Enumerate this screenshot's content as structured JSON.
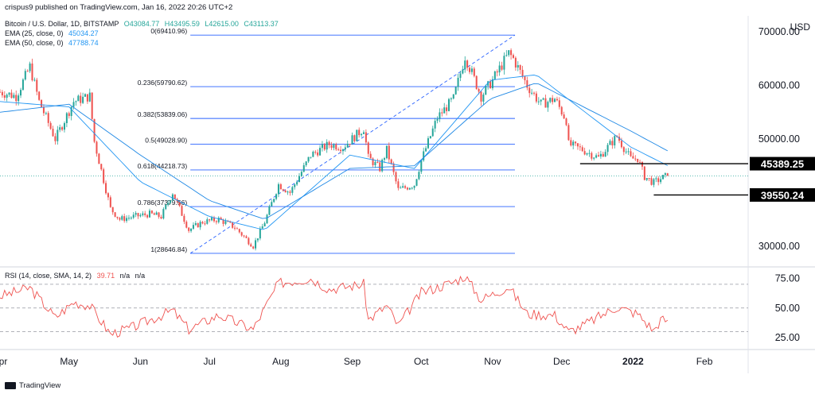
{
  "header": {
    "published_line": "crispus9 published on TradingView.com, Jan 16, 2022 20:26 UTC+2"
  },
  "legend": {
    "symbol_line": "Bitcoin / U.S. Dollar, 1D, BITSTAMP",
    "ohlc": {
      "o": "O43084.77",
      "h": "H43495.59",
      "l": "L42615.00",
      "c": "C43113.37"
    },
    "ema25_label": "EMA (25, close, 0)",
    "ema25_value": "45034.27",
    "ema50_label": "EMA (50, close, 0)",
    "ema50_value": "47788.74"
  },
  "price_axis": {
    "currency": "USD",
    "ticks": [
      "70000.00",
      "60000.00",
      "50000.00",
      "30000.00"
    ],
    "badges": [
      "45389.25",
      "39550.24"
    ]
  },
  "rsi_panel": {
    "label": "RSI (14, close, SMA, 14, 2)",
    "value": "39.71",
    "na1": "n/a",
    "na2": "n/a",
    "ticks": [
      "75.00",
      "50.00",
      "25.00"
    ]
  },
  "time_axis": {
    "labels": [
      "Apr",
      "May",
      "Jun",
      "Jul",
      "Aug",
      "Sep",
      "Oct",
      "Nov",
      "Dec",
      "2022",
      "Feb"
    ]
  },
  "footer": {
    "brand": "TradingView"
  },
  "colors": {
    "up": "#26a69a",
    "down": "#ef5350",
    "ema25": "#2196f3",
    "ema50": "#1e88e5",
    "fib": "#2962ff",
    "rsi": "#ef5350",
    "support_resistance": "#000000"
  },
  "chart_data": {
    "type": "candlestick",
    "timeframe": "1D",
    "symbol": "Bitcoin / U.S. Dollar",
    "ylim": [
      27000,
      73000
    ],
    "x_range": [
      "2021-04-01",
      "2022-02-20"
    ],
    "price_path": [
      [
        "2021-04-01",
        58800
      ],
      [
        "2021-04-08",
        58000
      ],
      [
        "2021-04-14",
        63500
      ],
      [
        "2021-04-18",
        57000
      ],
      [
        "2021-04-25",
        50000
      ],
      [
        "2021-05-03",
        57000
      ],
      [
        "2021-05-10",
        58000
      ],
      [
        "2021-05-12",
        49500
      ],
      [
        "2021-05-19",
        37000
      ],
      [
        "2021-05-23",
        35000
      ],
      [
        "2021-05-29",
        35500
      ],
      [
        "2021-06-05",
        36000
      ],
      [
        "2021-06-10",
        35500
      ],
      [
        "2021-06-15",
        40000
      ],
      [
        "2021-06-22",
        33000
      ],
      [
        "2021-06-28",
        34500
      ],
      [
        "2021-07-05",
        35000
      ],
      [
        "2021-07-12",
        33500
      ],
      [
        "2021-07-20",
        30000
      ],
      [
        "2021-07-25",
        34500
      ],
      [
        "2021-07-31",
        41500
      ],
      [
        "2021-08-05",
        40000
      ],
      [
        "2021-08-14",
        47000
      ],
      [
        "2021-08-22",
        49000
      ],
      [
        "2021-08-28",
        48500
      ],
      [
        "2021-09-06",
        52000
      ],
      [
        "2021-09-08",
        46500
      ],
      [
        "2021-09-13",
        44500
      ],
      [
        "2021-09-16",
        48000
      ],
      [
        "2021-09-21",
        40500
      ],
      [
        "2021-09-28",
        41500
      ],
      [
        "2021-10-01",
        46000
      ],
      [
        "2021-10-08",
        54000
      ],
      [
        "2021-10-15",
        57500
      ],
      [
        "2021-10-20",
        65500
      ],
      [
        "2021-10-27",
        58000
      ],
      [
        "2021-11-01",
        61000
      ],
      [
        "2021-11-08",
        66000
      ],
      [
        "2021-11-10",
        65000
      ],
      [
        "2021-11-16",
        60000
      ],
      [
        "2021-11-22",
        56500
      ],
      [
        "2021-11-28",
        57500
      ],
      [
        "2021-12-03",
        53500
      ],
      [
        "2021-12-04",
        49000
      ],
      [
        "2021-12-10",
        48000
      ],
      [
        "2021-12-17",
        46500
      ],
      [
        "2021-12-25",
        50500
      ],
      [
        "2021-12-31",
        46300
      ],
      [
        "2022-01-03",
        46400
      ],
      [
        "2022-01-06",
        43000
      ],
      [
        "2022-01-10",
        41800
      ],
      [
        "2022-01-13",
        42600
      ],
      [
        "2022-01-16",
        43113
      ]
    ],
    "ema25_path": [
      [
        "2021-04-01",
        57000
      ],
      [
        "2021-05-01",
        56000
      ],
      [
        "2021-06-01",
        42000
      ],
      [
        "2021-07-01",
        35500
      ],
      [
        "2021-07-25",
        33000
      ],
      [
        "2021-08-31",
        47000
      ],
      [
        "2021-09-28",
        44500
      ],
      [
        "2021-10-31",
        61000
      ],
      [
        "2021-11-20",
        62000
      ],
      [
        "2021-12-31",
        48500
      ],
      [
        "2022-01-16",
        45034
      ]
    ],
    "ema50_path": [
      [
        "2021-04-01",
        55000
      ],
      [
        "2021-05-01",
        56500
      ],
      [
        "2021-06-01",
        47000
      ],
      [
        "2021-07-01",
        38500
      ],
      [
        "2021-07-25",
        35000
      ],
      [
        "2021-08-31",
        44500
      ],
      [
        "2021-09-28",
        45000
      ],
      [
        "2021-10-31",
        57500
      ],
      [
        "2021-11-20",
        60500
      ],
      [
        "2021-12-31",
        51500
      ],
      [
        "2022-01-16",
        47789
      ]
    ],
    "fibonacci": {
      "start_date": "2021-06-22",
      "end_date": "2021-11-10",
      "levels": [
        {
          "label": "0(69410.96)",
          "price": 69410.96
        },
        {
          "label": "0.236(59790.62)",
          "price": 59790.62
        },
        {
          "label": "0.382(53839.06)",
          "price": 53839.06
        },
        {
          "label": "0.5(49028.90)",
          "price": 49028.9
        },
        {
          "label": "0.618(44218.73)",
          "price": 44218.73
        },
        {
          "label": "0.786(37379.56)",
          "price": 37379.56
        },
        {
          "label": "1(28646.84)",
          "price": 28646.84
        }
      ]
    },
    "horizontal_lines": [
      {
        "label": "45389.25",
        "price": 45389.25,
        "from": "2021-12-09",
        "to": "2022-01-16"
      },
      {
        "label": "39550.24",
        "price": 39550.24,
        "from": "2022-01-10",
        "to": "2022-01-16"
      }
    ],
    "last_price": 43113.37,
    "rsi": {
      "ylim": [
        15,
        82
      ],
      "levels": [
        70,
        50,
        30
      ],
      "path": [
        [
          "2021-04-01",
          60
        ],
        [
          "2021-04-14",
          67
        ],
        [
          "2021-04-25",
          42
        ],
        [
          "2021-05-03",
          55
        ],
        [
          "2021-05-10",
          52
        ],
        [
          "2021-05-19",
          28
        ],
        [
          "2021-05-29",
          34
        ],
        [
          "2021-06-15",
          48
        ],
        [
          "2021-06-22",
          32
        ],
        [
          "2021-07-05",
          44
        ],
        [
          "2021-07-20",
          32
        ],
        [
          "2021-07-31",
          71
        ],
        [
          "2021-08-14",
          75
        ],
        [
          "2021-08-22",
          66
        ],
        [
          "2021-09-06",
          70
        ],
        [
          "2021-09-08",
          40
        ],
        [
          "2021-09-16",
          52
        ],
        [
          "2021-09-21",
          35
        ],
        [
          "2021-10-01",
          63
        ],
        [
          "2021-10-15",
          72
        ],
        [
          "2021-10-20",
          77
        ],
        [
          "2021-10-27",
          57
        ],
        [
          "2021-11-08",
          68
        ],
        [
          "2021-11-16",
          45
        ],
        [
          "2021-11-28",
          44
        ],
        [
          "2021-12-04",
          30
        ],
        [
          "2021-12-10",
          35
        ],
        [
          "2021-12-25",
          51
        ],
        [
          "2022-01-03",
          45
        ],
        [
          "2022-01-10",
          31
        ],
        [
          "2022-01-13",
          40
        ],
        [
          "2022-01-16",
          39.71
        ]
      ]
    }
  }
}
